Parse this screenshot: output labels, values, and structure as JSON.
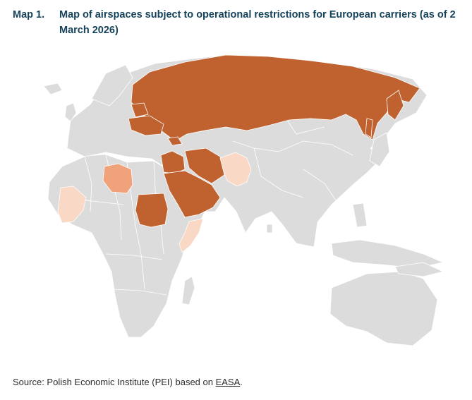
{
  "header": {
    "map_number": "Map 1.",
    "title": "Map of airspaces subject to operational restrictions for European carriers (as of 2 March 2026)"
  },
  "source": {
    "prefix": "Source: Polish Economic Institute (PEI) based on ",
    "link_text": "EASA",
    "suffix": "."
  },
  "colors": {
    "land": "#dcdcdc",
    "borders": "#ffffff",
    "restricted_high": "#c0622f",
    "restricted_medium": "#f0a27a",
    "restricted_low": "#f9d8c6"
  }
}
